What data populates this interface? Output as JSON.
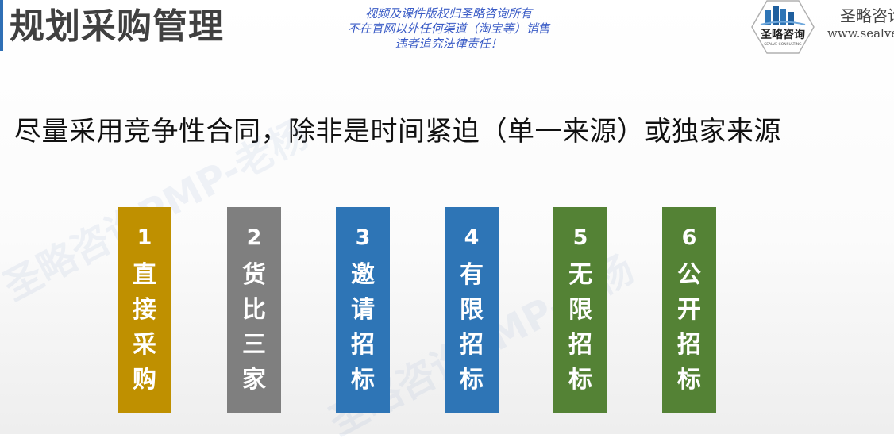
{
  "header": {
    "title": "规划采购管理",
    "copyright_lines": [
      "视频及课件版权归圣略咨询所有",
      "不在官网以外任何渠道（淘宝等）销售",
      "违者追究法律责任！"
    ]
  },
  "brand": {
    "logo_text": "圣略咨询",
    "logo_subtext": "SEALVE CONSULTING",
    "name": "圣略咨询",
    "url": "www.sealve"
  },
  "subtitle": "尽量采用竞争性合同，除非是时间紧迫（单一来源）或独家来源",
  "watermark": {
    "text_a": "圣略咨询PMP-老杨",
    "text_b": "圣略咨询PMP-老杨"
  },
  "cards": [
    {
      "num": "1",
      "chars": [
        "直",
        "接",
        "采",
        "购"
      ],
      "color": "#bf9000"
    },
    {
      "num": "2",
      "chars": [
        "货",
        "比",
        "三",
        "家"
      ],
      "color": "#7f7f7f"
    },
    {
      "num": "3",
      "chars": [
        "邀",
        "请",
        "招",
        "标"
      ],
      "color": "#2e75b6"
    },
    {
      "num": "4",
      "chars": [
        "有",
        "限",
        "招",
        "标"
      ],
      "color": "#2e75b6"
    },
    {
      "num": "5",
      "chars": [
        "无",
        "限",
        "招",
        "标"
      ],
      "color": "#548235"
    },
    {
      "num": "6",
      "chars": [
        "公",
        "开",
        "招",
        "标"
      ],
      "color": "#548235"
    }
  ]
}
